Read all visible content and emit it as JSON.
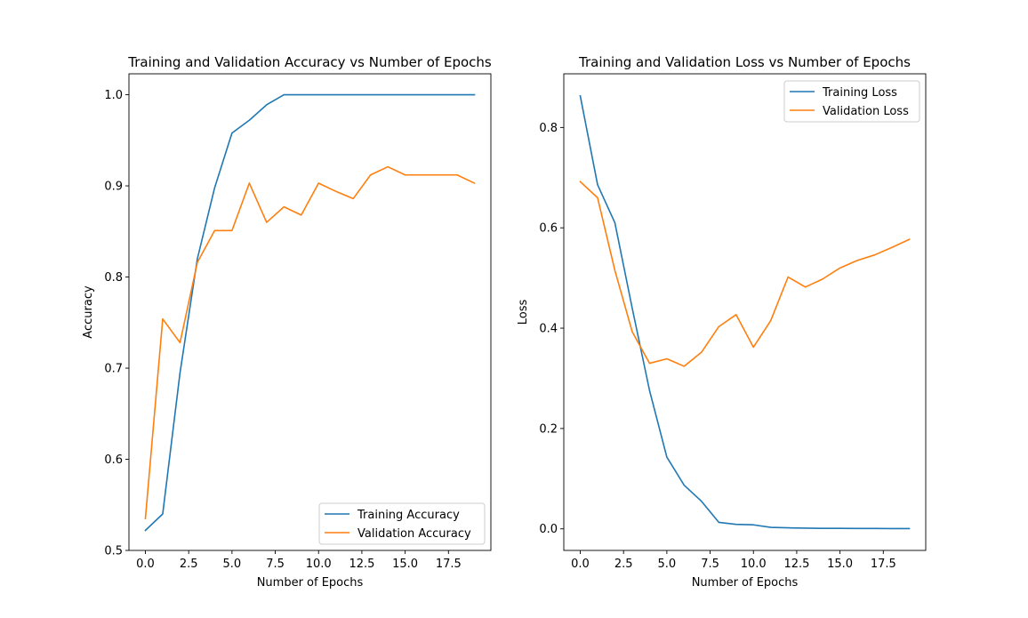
{
  "colors": {
    "training": "#1f77b4",
    "validation": "#ff7f0e",
    "axis": "#000000",
    "legend_border": "#cccccc"
  },
  "chart_data": [
    {
      "type": "line",
      "title": "Training and Validation Accuracy vs Number of Epochs",
      "xlabel": "Number of Epochs",
      "ylabel": "Accuracy",
      "xlim": [
        -0.95,
        19.95
      ],
      "ylim": [
        0.5,
        1.023
      ],
      "x_ticks": [
        0.0,
        2.5,
        5.0,
        7.5,
        10.0,
        12.5,
        15.0,
        17.5
      ],
      "x_tick_labels": [
        "0.0",
        "2.5",
        "5.0",
        "7.5",
        "10.0",
        "12.5",
        "15.0",
        "17.5"
      ],
      "y_ticks": [
        0.5,
        0.6,
        0.7,
        0.8,
        0.9,
        1.0
      ],
      "y_tick_labels": [
        "0.5",
        "0.6",
        "0.7",
        "0.8",
        "0.9",
        "1.0"
      ],
      "legend_position": "lower right",
      "grid": false,
      "x": [
        0,
        1,
        2,
        3,
        4,
        5,
        6,
        7,
        8,
        9,
        10,
        11,
        12,
        13,
        14,
        15,
        16,
        17,
        18,
        19
      ],
      "series": [
        {
          "name": "Training Accuracy",
          "values": [
            0.522,
            0.54,
            0.695,
            0.82,
            0.898,
            0.958,
            0.972,
            0.989,
            1.0,
            1.0,
            1.0,
            1.0,
            1.0,
            1.0,
            1.0,
            1.0,
            1.0,
            1.0,
            1.0,
            1.0
          ]
        },
        {
          "name": "Validation Accuracy",
          "values": [
            0.535,
            0.754,
            0.728,
            0.816,
            0.851,
            0.851,
            0.903,
            0.86,
            0.877,
            0.868,
            0.903,
            0.894,
            0.886,
            0.912,
            0.921,
            0.912,
            0.912,
            0.912,
            0.912,
            0.903
          ]
        }
      ]
    },
    {
      "type": "line",
      "title": "Training and Validation Loss vs Number of Epochs",
      "xlabel": "Number of Epochs",
      "ylabel": "Loss",
      "xlim": [
        -0.95,
        19.95
      ],
      "ylim": [
        -0.043,
        0.907
      ],
      "x_ticks": [
        0.0,
        2.5,
        5.0,
        7.5,
        10.0,
        12.5,
        15.0,
        17.5
      ],
      "x_tick_labels": [
        "0.0",
        "2.5",
        "5.0",
        "7.5",
        "10.0",
        "12.5",
        "15.0",
        "17.5"
      ],
      "y_ticks": [
        0.0,
        0.2,
        0.4,
        0.6,
        0.8
      ],
      "y_tick_labels": [
        "0.0",
        "0.2",
        "0.4",
        "0.6",
        "0.8"
      ],
      "legend_position": "upper right",
      "grid": false,
      "x": [
        0,
        1,
        2,
        3,
        4,
        5,
        6,
        7,
        8,
        9,
        10,
        11,
        12,
        13,
        14,
        15,
        16,
        17,
        18,
        19
      ],
      "series": [
        {
          "name": "Training Loss",
          "values": [
            0.863,
            0.686,
            0.61,
            0.44,
            0.276,
            0.143,
            0.087,
            0.055,
            0.013,
            0.009,
            0.008,
            0.003,
            0.002,
            0.0015,
            0.001,
            0.001,
            0.0008,
            0.0007,
            0.0006,
            0.0005
          ]
        },
        {
          "name": "Validation Loss",
          "values": [
            0.692,
            0.66,
            0.515,
            0.393,
            0.33,
            0.339,
            0.324,
            0.352,
            0.403,
            0.427,
            0.362,
            0.415,
            0.502,
            0.482,
            0.498,
            0.52,
            0.535,
            0.546,
            0.561,
            0.577
          ]
        }
      ]
    }
  ]
}
